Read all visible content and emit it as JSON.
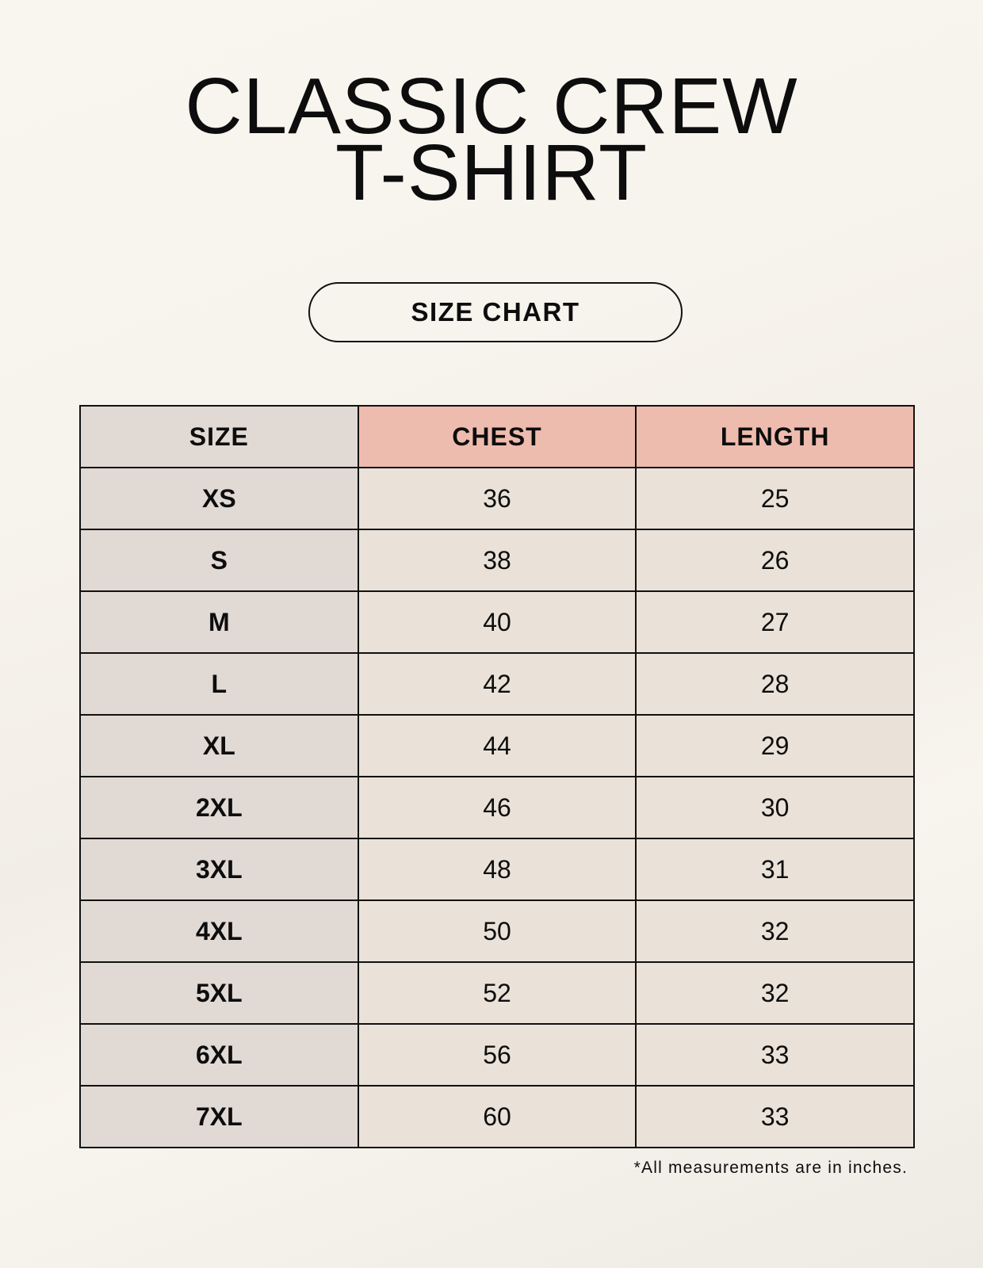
{
  "title": {
    "line1": "CLASSIC CREW",
    "line2": "T-SHIRT"
  },
  "badge": "SIZE CHART",
  "table": {
    "headers": [
      "SIZE",
      "CHEST",
      "LENGTH"
    ],
    "rows": [
      [
        "XS",
        "36",
        "25"
      ],
      [
        "S",
        "38",
        "26"
      ],
      [
        "M",
        "40",
        "27"
      ],
      [
        "L",
        "42",
        "28"
      ],
      [
        "XL",
        "44",
        "29"
      ],
      [
        "2XL",
        "46",
        "30"
      ],
      [
        "3XL",
        "48",
        "31"
      ],
      [
        "4XL",
        "50",
        "32"
      ],
      [
        "5XL",
        "52",
        "32"
      ],
      [
        "6XL",
        "56",
        "33"
      ],
      [
        "7XL",
        "60",
        "33"
      ]
    ]
  },
  "note": "*All measurements are in inches.",
  "colors": {
    "size_column": "#e1d9d4",
    "measure_header": "#eebcae",
    "measure_cells": "#eae2d8"
  }
}
